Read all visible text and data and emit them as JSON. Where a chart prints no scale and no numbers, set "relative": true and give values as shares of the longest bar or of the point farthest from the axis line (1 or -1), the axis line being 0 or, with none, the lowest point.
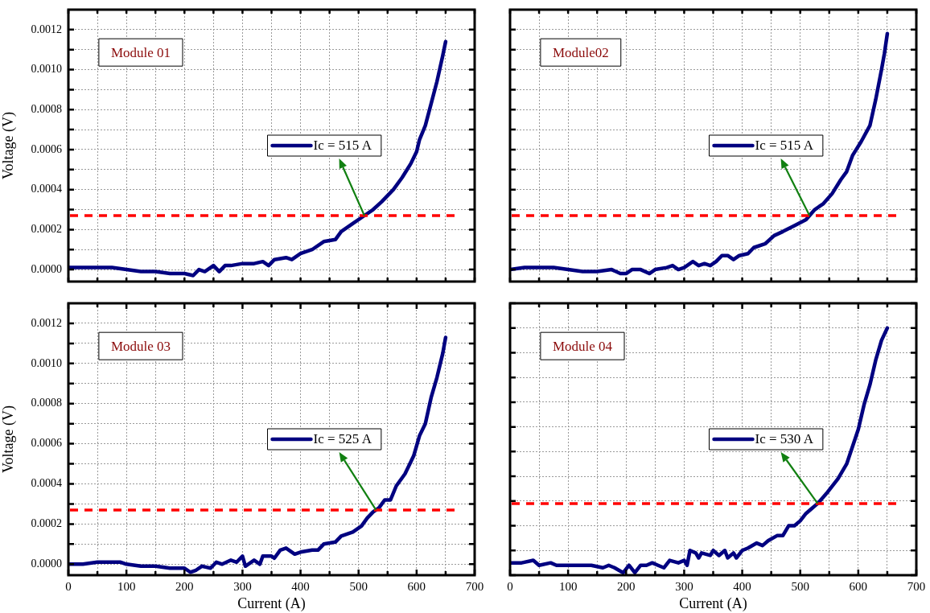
{
  "chart_data": [
    {
      "type": "line",
      "ylabel": "Voltage (V)",
      "annotations": [
        "Module 01"
      ],
      "legend": "right",
      "grid": true,
      "tick_labels": "y",
      "marker": "none",
      "line_style": "solid",
      "xlim": [
        0,
        700
      ],
      "xticks": [
        {
          "value": 0,
          "label": null
        },
        {
          "value": 50,
          "label": null
        },
        {
          "value": 100,
          "label": null
        },
        {
          "value": 150,
          "label": null
        },
        {
          "value": 200,
          "label": null
        },
        {
          "value": 250,
          "label": null
        },
        {
          "value": 300,
          "label": null
        },
        {
          "value": 350,
          "label": null
        },
        {
          "value": 400,
          "label": null
        },
        {
          "value": 450,
          "label": null
        },
        {
          "value": 500,
          "label": null
        },
        {
          "value": 550,
          "label": null
        },
        {
          "value": 600,
          "label": null
        },
        {
          "value": 650,
          "label": null
        },
        {
          "value": 700,
          "label": null
        }
      ],
      "ylim": [
        -6e-05,
        0.0013
      ],
      "yticks": [
        {
          "value": 0,
          "label": "0.0000"
        },
        {
          "value": 0.0001,
          "label": null
        },
        {
          "value": 0.0002,
          "label": "0.0002"
        },
        {
          "value": 0.0003,
          "label": null
        },
        {
          "value": 0.0004,
          "label": "0.0004"
        },
        {
          "value": 0.0005,
          "label": null
        },
        {
          "value": 0.0006,
          "label": "0.0006"
        },
        {
          "value": 0.0007,
          "label": null
        },
        {
          "value": 0.0008,
          "label": "0.0008"
        },
        {
          "value": 0.0009,
          "label": null
        },
        {
          "value": 0.001,
          "label": "0.0010"
        },
        {
          "value": 0.0011,
          "label": null
        },
        {
          "value": 0.0012,
          "label": "0.0012"
        }
      ],
      "ref_lines": [
        {
          "axis": "y",
          "value": 0.00027,
          "color": "#ff0000",
          "line_style": "dashed"
        }
      ],
      "x": [
        0,
        25,
        50,
        75,
        100,
        125,
        150,
        175,
        200,
        215,
        225,
        235,
        250,
        260,
        270,
        280,
        300,
        320,
        335,
        345,
        355,
        375,
        385,
        400,
        420,
        440,
        460,
        470,
        490,
        510,
        525,
        540,
        560,
        575,
        590,
        600,
        605,
        615,
        625,
        635,
        645,
        650
      ],
      "series": [
        {
          "name": "Ic = 515 A",
          "color": "#000080",
          "values": [
            1e-05,
            1e-05,
            1e-05,
            1e-05,
            0,
            -1e-05,
            -1e-05,
            -2e-05,
            -2e-05,
            -3e-05,
            0,
            -1e-05,
            2e-05,
            -1e-05,
            2e-05,
            2e-05,
            3e-05,
            3e-05,
            4e-05,
            2e-05,
            5e-05,
            6e-05,
            5e-05,
            8e-05,
            0.0001,
            0.00014,
            0.00015,
            0.00019,
            0.00023,
            0.00027,
            0.0003,
            0.00034,
            0.0004,
            0.00046,
            0.00053,
            0.00059,
            0.00065,
            0.00072,
            0.00083,
            0.00094,
            0.00107,
            0.00114
          ]
        }
      ]
    },
    {
      "type": "line",
      "annotations": [
        "Module02"
      ],
      "legend": "right",
      "grid": true,
      "tick_labels": false,
      "marker": "none",
      "line_style": "solid",
      "xlim": [
        0,
        700
      ],
      "xticks": [
        {
          "value": 0,
          "label": null
        },
        {
          "value": 50,
          "label": null
        },
        {
          "value": 100,
          "label": null
        },
        {
          "value": 150,
          "label": null
        },
        {
          "value": 200,
          "label": null
        },
        {
          "value": 250,
          "label": null
        },
        {
          "value": 300,
          "label": null
        },
        {
          "value": 350,
          "label": null
        },
        {
          "value": 400,
          "label": null
        },
        {
          "value": 450,
          "label": null
        },
        {
          "value": 500,
          "label": null
        },
        {
          "value": 550,
          "label": null
        },
        {
          "value": 600,
          "label": null
        },
        {
          "value": 650,
          "label": null
        },
        {
          "value": 700,
          "label": null
        }
      ],
      "ylim": [
        -6e-05,
        0.0013
      ],
      "yticks": [
        {
          "value": 0,
          "label": null
        },
        {
          "value": 0.0001,
          "label": null
        },
        {
          "value": 0.0002,
          "label": null
        },
        {
          "value": 0.0003,
          "label": null
        },
        {
          "value": 0.0004,
          "label": null
        },
        {
          "value": 0.0005,
          "label": null
        },
        {
          "value": 0.0006,
          "label": null
        },
        {
          "value": 0.0007,
          "label": null
        },
        {
          "value": 0.0008,
          "label": null
        },
        {
          "value": 0.0009,
          "label": null
        },
        {
          "value": 0.001,
          "label": null
        },
        {
          "value": 0.0011,
          "label": null
        },
        {
          "value": 0.0012,
          "label": null
        }
      ],
      "ref_lines": [
        {
          "axis": "y",
          "value": 0.00027,
          "color": "#ff0000",
          "line_style": "dashed"
        }
      ],
      "x": [
        0,
        25,
        50,
        75,
        100,
        125,
        150,
        175,
        190,
        200,
        210,
        225,
        240,
        250,
        270,
        280,
        290,
        300,
        315,
        325,
        335,
        345,
        355,
        365,
        375,
        385,
        395,
        410,
        420,
        440,
        455,
        470,
        490,
        510,
        525,
        540,
        555,
        570,
        580,
        590,
        605,
        620,
        630,
        640,
        645,
        650
      ],
      "series": [
        {
          "name": "Ic = 515 A",
          "color": "#000080",
          "values": [
            0,
            1e-05,
            1e-05,
            1e-05,
            0,
            -1e-05,
            -1e-05,
            0,
            -2e-05,
            -2e-05,
            0,
            0,
            -2e-05,
            0,
            1e-05,
            2e-05,
            0,
            1e-05,
            4e-05,
            2e-05,
            3e-05,
            2e-05,
            4e-05,
            7e-05,
            7e-05,
            5e-05,
            7e-05,
            8e-05,
            0.00011,
            0.00013,
            0.00017,
            0.00019,
            0.00022,
            0.00025,
            0.0003,
            0.00033,
            0.00038,
            0.00045,
            0.00049,
            0.00057,
            0.00064,
            0.00072,
            0.00085,
            0.001,
            0.00108,
            0.00118
          ]
        }
      ]
    },
    {
      "type": "line",
      "xlabel": "Current (A)",
      "ylabel": "Voltage (V)",
      "annotations": [
        "Module 03"
      ],
      "legend": "right",
      "grid": true,
      "marker": "none",
      "line_style": "solid",
      "xlim": [
        0,
        700
      ],
      "xticks": [
        0,
        {
          "value": 50,
          "label": null
        },
        100,
        {
          "value": 150,
          "label": null
        },
        200,
        {
          "value": 250,
          "label": null
        },
        300,
        {
          "value": 350,
          "label": null
        },
        400,
        {
          "value": 450,
          "label": null
        },
        500,
        {
          "value": 550,
          "label": null
        },
        600,
        {
          "value": 650,
          "label": null
        },
        700
      ],
      "ylim": [
        -5.5e-05,
        0.0013
      ],
      "yticks": [
        {
          "value": 0,
          "label": "0.0000"
        },
        {
          "value": 0.0001,
          "label": null
        },
        {
          "value": 0.0002,
          "label": "0.0002"
        },
        {
          "value": 0.0003,
          "label": null
        },
        {
          "value": 0.0004,
          "label": "0.0004"
        },
        {
          "value": 0.0005,
          "label": null
        },
        {
          "value": 0.0006,
          "label": "0.0006"
        },
        {
          "value": 0.0007,
          "label": null
        },
        {
          "value": 0.0008,
          "label": "0.0008"
        },
        {
          "value": 0.0009,
          "label": null
        },
        {
          "value": 0.001,
          "label": "0.0010"
        },
        {
          "value": 0.0011,
          "label": null
        },
        {
          "value": 0.0012,
          "label": "0.0012"
        }
      ],
      "ref_lines": [
        {
          "axis": "y",
          "value": 0.00027,
          "color": "#ff0000",
          "line_style": "dashed"
        }
      ],
      "x": [
        0,
        25,
        50,
        70,
        90,
        100,
        125,
        150,
        175,
        200,
        210,
        220,
        230,
        245,
        255,
        265,
        280,
        290,
        300,
        305,
        320,
        330,
        335,
        350,
        355,
        365,
        375,
        390,
        400,
        420,
        430,
        440,
        460,
        470,
        490,
        505,
        515,
        525,
        535,
        545,
        555,
        565,
        580,
        595,
        605,
        615,
        625,
        635,
        645,
        650
      ],
      "series": [
        {
          "name": "Ic = 525 A",
          "color": "#000080",
          "values": [
            0,
            0,
            1e-05,
            1e-05,
            1e-05,
            0,
            -1e-05,
            -1e-05,
            -2e-05,
            -2e-05,
            -4e-05,
            -3e-05,
            -1e-05,
            -2e-05,
            1e-05,
            0,
            2e-05,
            1e-05,
            4e-05,
            -1e-05,
            2e-05,
            0,
            4e-05,
            4e-05,
            3e-05,
            7e-05,
            8e-05,
            5e-05,
            6e-05,
            7e-05,
            7e-05,
            0.0001,
            0.00011,
            0.00014,
            0.00016,
            0.00019,
            0.00023,
            0.00026,
            0.00028,
            0.00032,
            0.00032,
            0.00039,
            0.00045,
            0.00054,
            0.00064,
            0.0007,
            0.00083,
            0.00093,
            0.00105,
            0.00113
          ]
        }
      ]
    },
    {
      "type": "line",
      "xlabel": "Current (A)",
      "annotations": [
        "Module 04"
      ],
      "legend": "right",
      "grid": true,
      "tick_labels": "x",
      "marker": "none",
      "line_style": "solid",
      "relative": true,
      "xlim": [
        0,
        700
      ],
      "xticks": [
        0,
        {
          "value": 50,
          "label": null
        },
        100,
        {
          "value": 150,
          "label": null
        },
        200,
        {
          "value": 250,
          "label": null
        },
        300,
        {
          "value": 350,
          "label": null
        },
        400,
        {
          "value": 450,
          "label": null
        },
        500,
        {
          "value": 550,
          "label": null
        },
        600,
        {
          "value": 650,
          "label": null
        },
        700
      ],
      "ref_lines": [
        {
          "axis": "y",
          "value": 0.29,
          "color": "#ff0000",
          "line_style": "dashed"
        }
      ],
      "x": [
        0,
        20,
        40,
        50,
        70,
        80,
        100,
        125,
        140,
        160,
        170,
        180,
        195,
        205,
        215,
        225,
        235,
        245,
        255,
        265,
        275,
        290,
        300,
        305,
        310,
        320,
        325,
        330,
        345,
        350,
        360,
        370,
        375,
        385,
        390,
        400,
        410,
        425,
        435,
        445,
        460,
        470,
        480,
        490,
        500,
        510,
        520,
        530,
        545,
        555,
        565,
        580,
        590,
        600,
        610,
        620,
        630,
        640,
        650
      ],
      "series": [
        {
          "name": "Ic = 530 A",
          "color": "#000080",
          "values": [
            0.05,
            0.05,
            0.06,
            0.04,
            0.05,
            0.04,
            0.04,
            0.04,
            0.04,
            0.03,
            0.04,
            0.03,
            0.01,
            0.04,
            0.01,
            0.04,
            0.04,
            0.05,
            0.04,
            0.03,
            0.06,
            0.05,
            0.06,
            0.04,
            0.1,
            0.09,
            0.07,
            0.09,
            0.08,
            0.1,
            0.08,
            0.1,
            0.07,
            0.09,
            0.07,
            0.1,
            0.11,
            0.13,
            0.12,
            0.14,
            0.16,
            0.16,
            0.2,
            0.2,
            0.22,
            0.25,
            0.27,
            0.29,
            0.33,
            0.36,
            0.39,
            0.45,
            0.52,
            0.59,
            0.69,
            0.77,
            0.87,
            0.95,
            1
          ]
        }
      ]
    }
  ]
}
